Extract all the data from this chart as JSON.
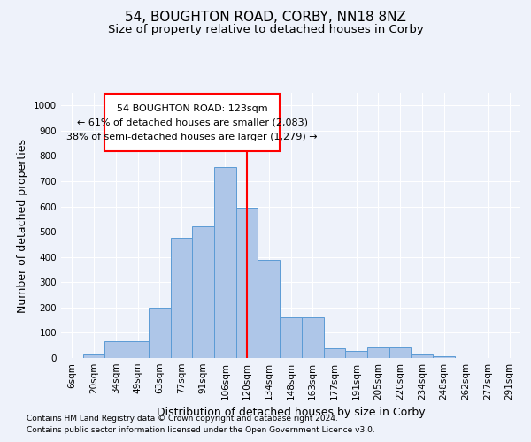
{
  "title": "54, BOUGHTON ROAD, CORBY, NN18 8NZ",
  "subtitle": "Size of property relative to detached houses in Corby",
  "xlabel": "Distribution of detached houses by size in Corby",
  "ylabel": "Number of detached properties",
  "categories": [
    "6sqm",
    "20sqm",
    "34sqm",
    "49sqm",
    "63sqm",
    "77sqm",
    "91sqm",
    "106sqm",
    "120sqm",
    "134sqm",
    "148sqm",
    "163sqm",
    "177sqm",
    "191sqm",
    "205sqm",
    "220sqm",
    "234sqm",
    "248sqm",
    "262sqm",
    "277sqm",
    "291sqm"
  ],
  "values": [
    0,
    13,
    65,
    65,
    200,
    475,
    520,
    755,
    595,
    390,
    160,
    160,
    40,
    27,
    43,
    43,
    13,
    8,
    0,
    0,
    0
  ],
  "bar_color": "#aec6e8",
  "bar_edge_color": "#5b9bd5",
  "vline_x": 8,
  "vline_color": "red",
  "annotation_line1": "54 BOUGHTON ROAD: 123sqm",
  "annotation_line2": "← 61% of detached houses are smaller (2,083)",
  "annotation_line3": "38% of semi-detached houses are larger (1,279) →",
  "annotation_box_color": "red",
  "ylim": [
    0,
    1050
  ],
  "yticks": [
    0,
    100,
    200,
    300,
    400,
    500,
    600,
    700,
    800,
    900,
    1000
  ],
  "footnote1": "Contains HM Land Registry data © Crown copyright and database right 2024.",
  "footnote2": "Contains public sector information licensed under the Open Government Licence v3.0.",
  "bg_color": "#eef2fa",
  "grid_color": "#ffffff",
  "title_fontsize": 11,
  "subtitle_fontsize": 9.5,
  "tick_fontsize": 7.5,
  "ylabel_fontsize": 9,
  "xlabel_fontsize": 9,
  "footnote_fontsize": 6.5
}
